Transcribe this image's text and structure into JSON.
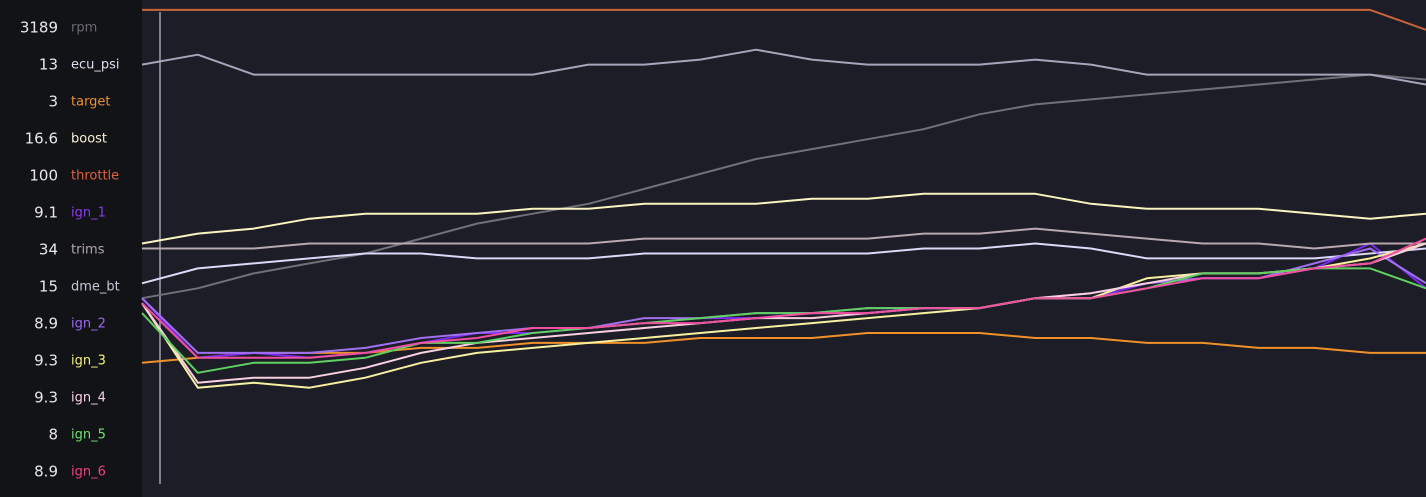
{
  "chart_data": {
    "type": "line",
    "categories": [
      null,
      null,
      null,
      null,
      null,
      null,
      null,
      null,
      null,
      null,
      null,
      null,
      null,
      null,
      null,
      null,
      null,
      null,
      null,
      null,
      null,
      null,
      null,
      null
    ],
    "ylim": [
      0,
      100
    ],
    "series": [
      {
        "name": "rpm",
        "readout": 3189,
        "color": "#707078",
        "label_color": "#6a6a70",
        "values": [
          40,
          42,
          45,
          47,
          49,
          52,
          55,
          57,
          59,
          62,
          65,
          68,
          70,
          72,
          74,
          77,
          79,
          80,
          81,
          82,
          83,
          84,
          85,
          84
        ]
      },
      {
        "name": "ecu_psi",
        "readout": 13,
        "color": "#a8a4bc",
        "label_color": "#e0dcf0",
        "values": [
          87,
          89,
          85,
          85,
          85,
          85,
          85,
          85,
          87,
          87,
          88,
          90,
          88,
          87,
          87,
          87,
          88,
          87,
          85,
          85,
          85,
          85,
          85,
          83
        ]
      },
      {
        "name": "target",
        "readout": 3,
        "color": "#f0902a",
        "label_color": "#e8903a",
        "values": [
          27,
          28,
          29,
          29,
          29,
          30,
          30,
          31,
          31,
          31,
          32,
          32,
          32,
          33,
          33,
          33,
          32,
          32,
          31,
          31,
          30,
          30,
          29,
          29
        ]
      },
      {
        "name": "boost",
        "readout": 16.6,
        "color": "#faf4c0",
        "label_color": "#f8f0d0",
        "values": [
          51,
          53,
          54,
          56,
          57,
          57,
          57,
          58,
          58,
          59,
          59,
          59,
          60,
          60,
          61,
          61,
          61,
          59,
          58,
          58,
          58,
          57,
          56,
          57
        ]
      },
      {
        "name": "throttle",
        "readout": 100,
        "color": "#c8643c",
        "label_color": "#e06040",
        "values": [
          98,
          98,
          98,
          98,
          98,
          98,
          98,
          98,
          98,
          98,
          98,
          98,
          98,
          98,
          98,
          98,
          98,
          98,
          98,
          98,
          98,
          98,
          98,
          94
        ]
      },
      {
        "name": "ign_1",
        "readout": 9.1,
        "color": "#7a2af0",
        "label_color": "#8a3af0",
        "values": [
          40,
          28,
          29,
          28,
          29,
          31,
          33,
          33,
          34,
          35,
          36,
          36,
          37,
          37,
          38,
          38,
          40,
          40,
          43,
          44,
          44,
          46,
          51,
          42
        ]
      },
      {
        "name": "trims",
        "readout": 34,
        "color": "#b8a8b0",
        "label_color": "#b0a8b0",
        "values": [
          50,
          50,
          50,
          51,
          51,
          51,
          51,
          51,
          51,
          52,
          52,
          52,
          52,
          52,
          53,
          53,
          54,
          53,
          52,
          51,
          51,
          50,
          51,
          51
        ]
      },
      {
        "name": "dme_bt",
        "readout": 15,
        "color": "#dcd8f8",
        "label_color": "#c8c8d8",
        "values": [
          43,
          46,
          47,
          48,
          49,
          49,
          48,
          48,
          48,
          49,
          49,
          49,
          49,
          49,
          50,
          50,
          51,
          50,
          48,
          48,
          48,
          48,
          49,
          50
        ]
      },
      {
        "name": "ign_2",
        "readout": 8.9,
        "color": "#a070f0",
        "label_color": "#9b6af0",
        "values": [
          40,
          29,
          29,
          29,
          30,
          32,
          33,
          34,
          34,
          36,
          36,
          37,
          37,
          38,
          38,
          38,
          40,
          41,
          43,
          44,
          44,
          47,
          50,
          43
        ]
      },
      {
        "name": "ign_3",
        "readout": 9.3,
        "color": "#f8f0a0",
        "label_color": "#f8f080",
        "values": [
          39,
          22,
          23,
          22,
          24,
          27,
          29,
          30,
          31,
          32,
          33,
          34,
          35,
          36,
          37,
          38,
          40,
          40,
          44,
          45,
          45,
          46,
          48,
          51
        ]
      },
      {
        "name": "ign_4",
        "readout": 9.3,
        "color": "#f8d0e0",
        "label_color": "#f8d0e8",
        "values": [
          39,
          23,
          24,
          24,
          26,
          29,
          31,
          32,
          33,
          34,
          35,
          36,
          36,
          37,
          38,
          38,
          40,
          41,
          43,
          45,
          45,
          46,
          47,
          51
        ]
      },
      {
        "name": "ign_5",
        "readout": 8,
        "color": "#60d060",
        "label_color": "#70e070",
        "values": [
          37,
          25,
          27,
          27,
          28,
          31,
          31,
          33,
          34,
          35,
          36,
          37,
          37,
          38,
          38,
          38,
          40,
          40,
          42,
          45,
          45,
          46,
          46,
          42
        ]
      },
      {
        "name": "ign_6",
        "readout": 8.9,
        "color": "#f050a0",
        "label_color": "#f04080",
        "values": [
          39,
          28,
          28,
          28,
          29,
          31,
          32,
          34,
          34,
          35,
          35,
          36,
          37,
          37,
          38,
          38,
          40,
          40,
          42,
          44,
          44,
          46,
          47,
          52
        ]
      }
    ]
  }
}
